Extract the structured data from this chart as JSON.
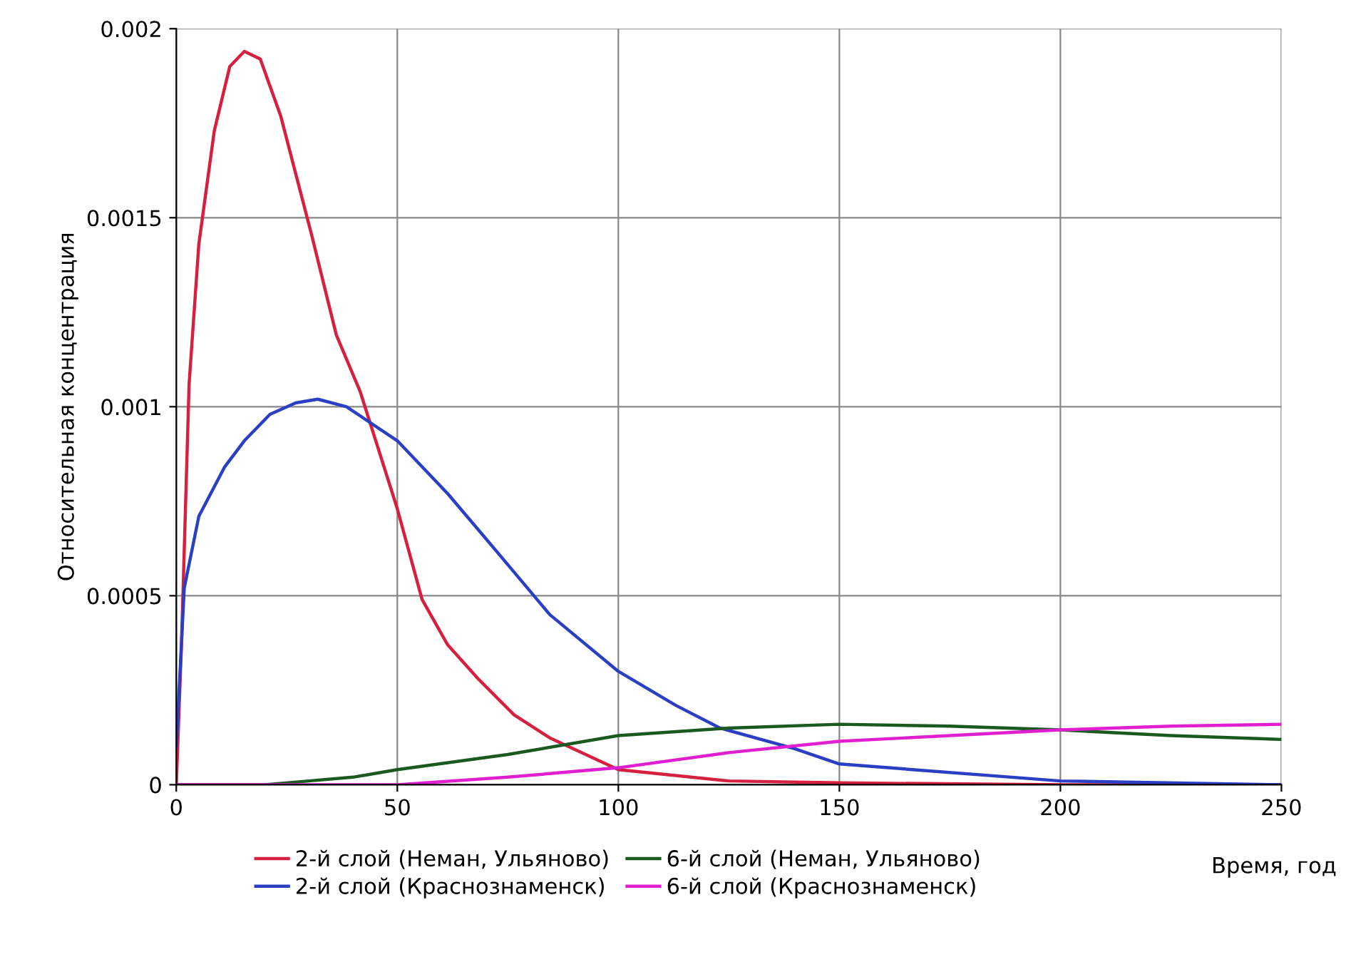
{
  "chart_data": {
    "type": "line",
    "xlabel": "Время, год",
    "ylabel": "Относительная концентрация",
    "xlim": [
      0,
      250
    ],
    "xticks": [
      0,
      50,
      100,
      150,
      200,
      250
    ],
    "ylim": [
      0,
      0.002
    ],
    "yticks": [
      {
        "value": 0,
        "label": "0"
      },
      {
        "value": 0.0005,
        "label": "0.0005"
      },
      {
        "value": 0.001,
        "label": "0.001"
      },
      {
        "value": 0.0015,
        "label": "0.0015"
      },
      {
        "value": 0.002,
        "label": "0.002"
      }
    ],
    "grid": true,
    "legend": "bottom",
    "marker": "none",
    "line_style": "solid",
    "series": [
      {
        "name": "2-й слой (Неман, Ульяново)",
        "color": "#d62040",
        "x": [
          0,
          1.2,
          2.9,
          5.1,
          8.6,
          12.1,
          15.4,
          19,
          23.6,
          30.5,
          36.2,
          41.6,
          50,
          55.6,
          61.4,
          68.3,
          76.4,
          84.5,
          100,
          125,
          150,
          200,
          250
        ],
        "values": [
          0,
          0.00038,
          0.00106,
          0.00143,
          0.00173,
          0.0019,
          0.00194,
          0.00192,
          0.00177,
          0.00146,
          0.00119,
          0.00104,
          0.00073,
          0.00049,
          0.00037,
          0.00028,
          0.000185,
          0.000124,
          4e-05,
          1e-05,
          5e-06,
          0,
          0
        ]
      },
      {
        "name": "2-й слой (Краснознаменск)",
        "color": "#2a3fc4",
        "x": [
          0,
          1.8,
          5.1,
          10.9,
          15.4,
          21.2,
          27,
          32,
          38.5,
          50,
          61.4,
          73,
          84.5,
          100,
          113,
          123,
          140,
          150,
          200,
          250
        ],
        "values": [
          0.0001,
          0.00052,
          0.00071,
          0.00084,
          0.00091,
          0.00098,
          0.00101,
          0.00102,
          0.001,
          0.00091,
          0.00077,
          0.00061,
          0.00045,
          0.0003,
          0.00021,
          0.00015,
          9.5e-05,
          5.5e-05,
          1e-05,
          0
        ]
      },
      {
        "name": "6-й слой (Неман, Ульяново)",
        "color": "#1a5a20",
        "x": [
          0,
          20,
          30,
          40,
          50,
          75,
          100,
          125,
          150,
          175,
          200,
          225,
          250
        ],
        "values": [
          0,
          0,
          1e-05,
          2e-05,
          4e-05,
          8e-05,
          0.00013,
          0.00015,
          0.00016,
          0.000155,
          0.000145,
          0.00013,
          0.00012
        ]
      },
      {
        "name": "6-й слой (Краснознаменск)",
        "color": "#e020d0",
        "x": [
          0,
          50,
          75,
          100,
          125,
          150,
          175,
          200,
          225,
          250
        ],
        "values": [
          0,
          0,
          2e-05,
          4.5e-05,
          8.5e-05,
          0.000115,
          0.00013,
          0.000145,
          0.000155,
          0.00016
        ]
      }
    ]
  }
}
